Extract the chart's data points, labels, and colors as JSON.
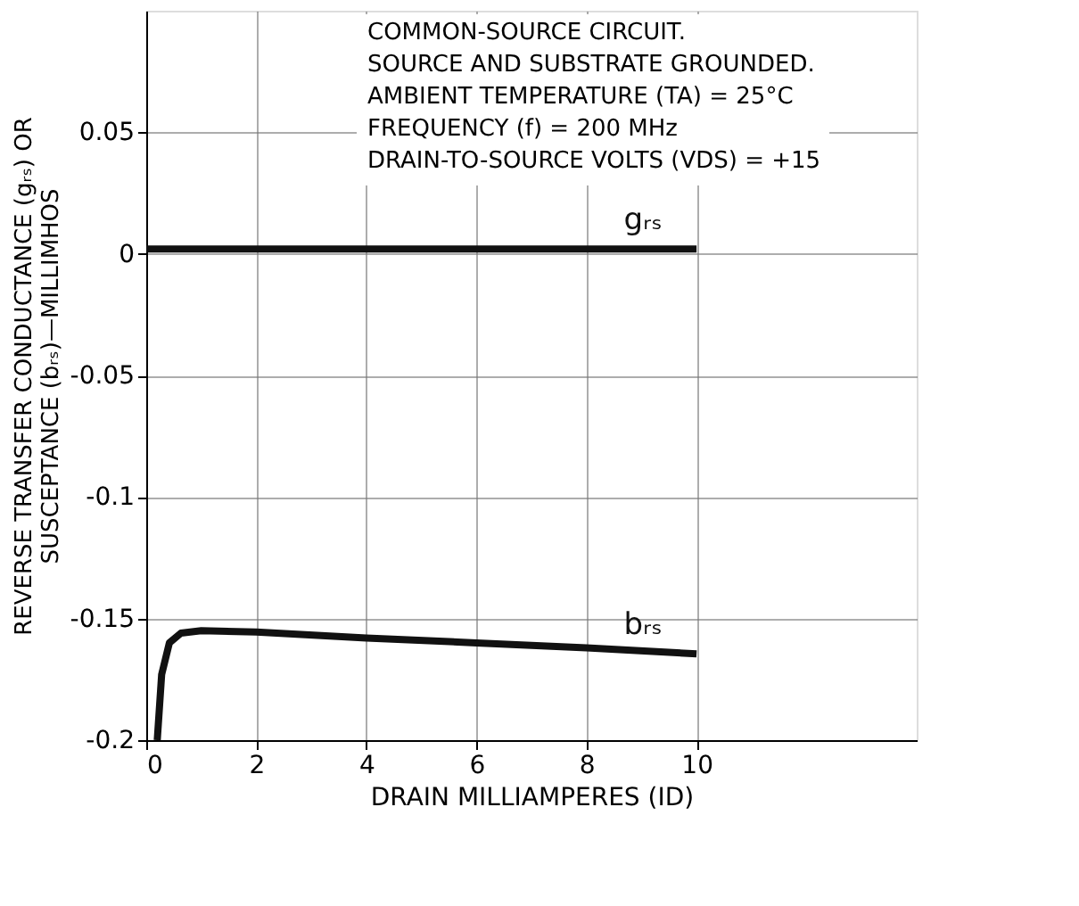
{
  "chart_data": {
    "type": "line",
    "xlabel": "DRAIN MILLIAMPERES (ID)",
    "ylabel": "REVERSE TRANSFER CONDUCTANCE (gᵣₛ) OR\nSUSCEPTANCE (bᵣₛ)—MILLIMHOS",
    "annotations": [
      "COMMON-SOURCE CIRCUIT.",
      "SOURCE AND SUBSTRATE GROUNDED.",
      "AMBIENT TEMPERATURE (TA) = 25°C",
      "FREQUENCY (f) = 200 MHz",
      "DRAIN-TO-SOURCE VOLTS (VDS) = +15"
    ],
    "series": [
      {
        "name": "gᵣₛ",
        "color": "#111111",
        "x": [
          0,
          2,
          4,
          6,
          8,
          10
        ],
        "values": [
          0.002,
          0.002,
          0.002,
          0.002,
          0.002,
          0.002
        ]
      },
      {
        "name": "bᵣₛ",
        "color": "#111111",
        "x": [
          0.2,
          0.28,
          0.42,
          0.63,
          1.0,
          2,
          4,
          6,
          8,
          10
        ],
        "values": [
          -0.2,
          -0.173,
          -0.16,
          -0.156,
          -0.155,
          -0.1555,
          -0.158,
          -0.16,
          -0.162,
          -0.1645
        ]
      }
    ],
    "xlim": [
      0,
      14
    ],
    "xticks": [
      0,
      2,
      4,
      6,
      8,
      10
    ],
    "ylim": [
      -0.2,
      0.1
    ],
    "yticks": [
      {
        "value": 0.05,
        "label": "0.05"
      },
      0,
      {
        "value": -0.05,
        "label": "-0.05"
      },
      {
        "value": -0.1,
        "label": "-0.1"
      },
      {
        "value": -0.15,
        "label": "-0.15"
      },
      {
        "value": -0.2,
        "label": "-0.2"
      }
    ],
    "grid": true,
    "legend": false,
    "line_style": "solid",
    "marker": "none"
  }
}
